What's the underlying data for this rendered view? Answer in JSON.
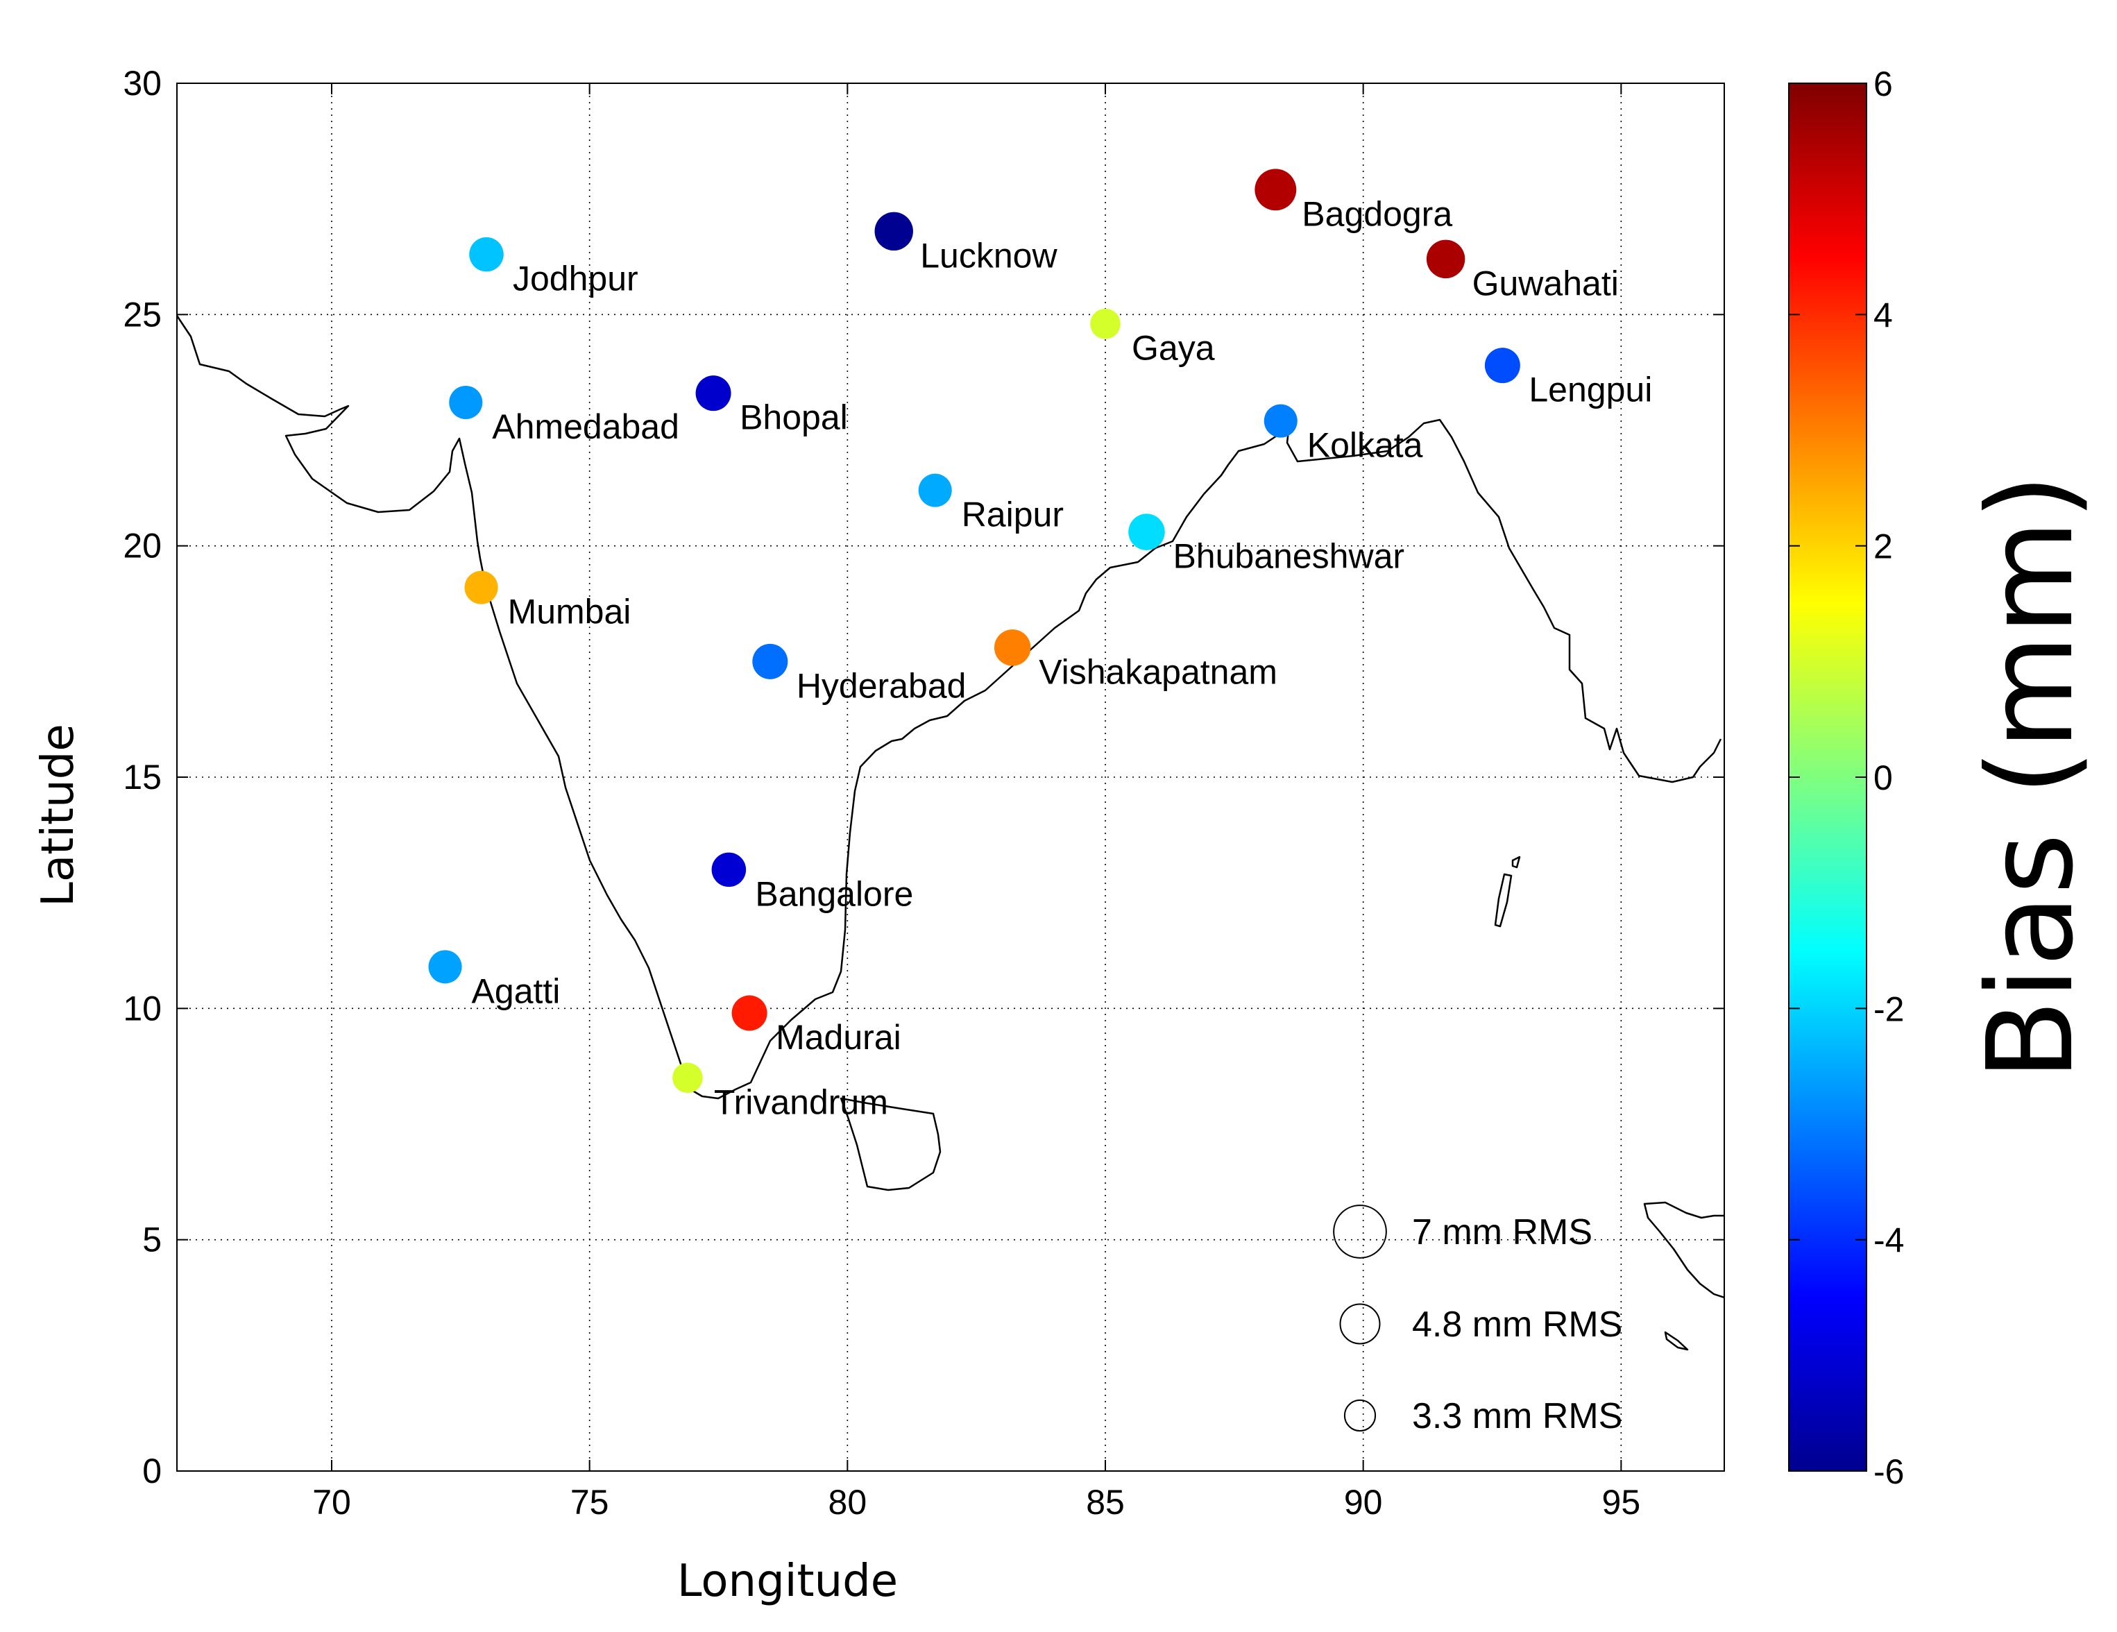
{
  "chart_data": {
    "type": "scatter",
    "xlabel": "Longitude",
    "ylabel": "Latitude",
    "xlim": [
      67,
      97
    ],
    "ylim": [
      0,
      30
    ],
    "xticks": [
      "70",
      "75",
      "80",
      "85",
      "90",
      "95"
    ],
    "yticks": [
      "0",
      "5",
      "10",
      "15",
      "20",
      "25",
      "30"
    ],
    "grid": true,
    "colorbar": {
      "label": "Bias (mm)",
      "range": [
        -6,
        6
      ],
      "ticks": [
        "6",
        "4",
        "2",
        "0",
        "-2",
        "-4",
        "-6"
      ],
      "colormap": "jet"
    },
    "size_legend": [
      {
        "label": "7 mm RMS",
        "rms": 7
      },
      {
        "label": "4.8 mm RMS",
        "rms": 4.8
      },
      {
        "label": "3.3 mm RMS",
        "rms": 3.3
      }
    ],
    "stations": [
      {
        "name": "Jodhpur",
        "lon": 73.0,
        "lat": 26.3,
        "bias": -2.2,
        "rms": 4.8
      },
      {
        "name": "Lucknow",
        "lon": 80.9,
        "lat": 26.8,
        "bias": -5.8,
        "rms": 5.6
      },
      {
        "name": "Bagdogra",
        "lon": 88.3,
        "lat": 27.7,
        "bias": 5.4,
        "rms": 6.2
      },
      {
        "name": "Guwahati",
        "lon": 91.6,
        "lat": 26.2,
        "bias": 5.5,
        "rms": 5.6
      },
      {
        "name": "Gaya",
        "lon": 85.0,
        "lat": 24.8,
        "bias": 1.0,
        "rms": 4.0
      },
      {
        "name": "Lengpui",
        "lon": 92.7,
        "lat": 23.9,
        "bias": -3.6,
        "rms": 5.0
      },
      {
        "name": "Ahmedabad",
        "lon": 72.6,
        "lat": 23.1,
        "bias": -2.7,
        "rms": 4.6
      },
      {
        "name": "Bhopal",
        "lon": 77.4,
        "lat": 23.3,
        "bias": -5.1,
        "rms": 5.0
      },
      {
        "name": "Kolkata",
        "lon": 88.4,
        "lat": 22.7,
        "bias": -3.0,
        "rms": 4.6
      },
      {
        "name": "Raipur",
        "lon": 81.7,
        "lat": 21.2,
        "bias": -2.5,
        "rms": 4.6
      },
      {
        "name": "Bhubaneshwar",
        "lon": 85.8,
        "lat": 20.3,
        "bias": -1.9,
        "rms": 5.2
      },
      {
        "name": "Mumbai",
        "lon": 72.9,
        "lat": 19.1,
        "bias": 2.4,
        "rms": 4.6
      },
      {
        "name": "Hyderabad",
        "lon": 78.5,
        "lat": 17.5,
        "bias": -3.2,
        "rms": 5.0
      },
      {
        "name": "Vishakapatnam",
        "lon": 83.2,
        "lat": 17.8,
        "bias": 3.0,
        "rms": 5.2
      },
      {
        "name": "Bangalore",
        "lon": 77.7,
        "lat": 13.0,
        "bias": -5.0,
        "rms": 4.8
      },
      {
        "name": "Agatti",
        "lon": 72.2,
        "lat": 10.9,
        "bias": -2.6,
        "rms": 4.6
      },
      {
        "name": "Madurai",
        "lon": 78.1,
        "lat": 9.9,
        "bias": 4.2,
        "rms": 5.0
      },
      {
        "name": "Trivandrum",
        "lon": 76.9,
        "lat": 8.5,
        "bias": 1.0,
        "rms": 4.0
      }
    ]
  }
}
